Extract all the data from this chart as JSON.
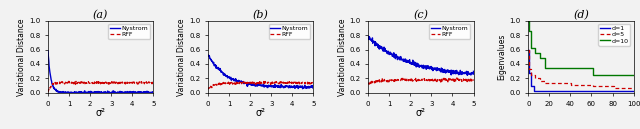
{
  "fig_width": 6.4,
  "fig_height": 1.29,
  "dpi": 100,
  "background": "#f2f2f2",
  "plots": [
    {
      "title": "(a)",
      "xlabel": "σ²",
      "ylabel": "Variational Distance",
      "xlim": [
        0,
        5
      ],
      "ylim": [
        0,
        1.0
      ],
      "yticks": [
        0.0,
        0.2,
        0.4,
        0.6,
        0.8,
        1.0
      ],
      "xticks": [
        0,
        1,
        2,
        3,
        4,
        5
      ],
      "nystrom_color": "#0000cc",
      "rff_color": "#cc0000",
      "nystrom_label": "Nystrom",
      "rff_label": "RFF",
      "type": "variational_a"
    },
    {
      "title": "(b)",
      "xlabel": "σ²",
      "ylabel": "Variational Distance",
      "xlim": [
        0,
        5
      ],
      "ylim": [
        0,
        1.0
      ],
      "yticks": [
        0.0,
        0.2,
        0.4,
        0.6,
        0.8,
        1.0
      ],
      "xticks": [
        0,
        1,
        2,
        3,
        4,
        5
      ],
      "nystrom_color": "#0000cc",
      "rff_color": "#cc0000",
      "nystrom_label": "Nystrom",
      "rff_label": "RFF",
      "type": "variational_b"
    },
    {
      "title": "(c)",
      "xlabel": "σ²",
      "ylabel": "Variational Distance",
      "xlim": [
        0,
        5
      ],
      "ylim": [
        0,
        1.0
      ],
      "yticks": [
        0.0,
        0.2,
        0.4,
        0.6,
        0.8,
        1.0
      ],
      "xticks": [
        0,
        1,
        2,
        3,
        4,
        5
      ],
      "nystrom_color": "#0000cc",
      "rff_color": "#cc0000",
      "nystrom_label": "Nystrom",
      "rff_label": "RFF",
      "type": "variational_c"
    },
    {
      "title": "(d)",
      "xlabel": "",
      "ylabel": "Eigenvalues",
      "xlim": [
        0,
        100
      ],
      "ylim": [
        0,
        1.0
      ],
      "yticks": [
        0.0,
        0.2,
        0.4,
        0.6,
        0.8,
        1.0
      ],
      "xticks": [
        0,
        20,
        40,
        60,
        80,
        100
      ],
      "d1_color": "#0000cc",
      "d5_color": "#cc0000",
      "d10_color": "#007700",
      "d1_label": "d=1",
      "d5_label": "d=5",
      "d10_label": "d=10",
      "type": "eigenvalues"
    }
  ]
}
